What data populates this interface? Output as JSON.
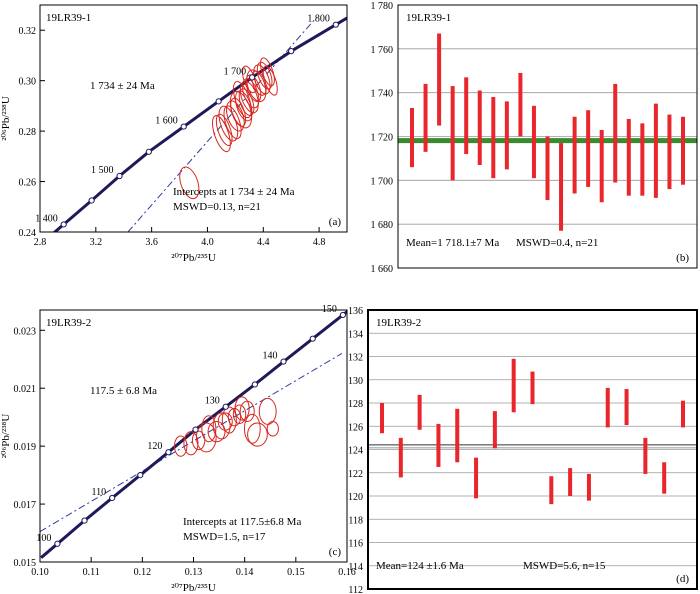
{
  "chart_data": [
    {
      "type": "scatter",
      "panel_label": "(a)",
      "sample": "19LR39-1",
      "age_text": "1 734 ± 24 Ma",
      "intercepts_text": "Intercepts at     1 734 ± 24 Ma",
      "mswd_text": "MSWD=0.13, n=21",
      "xlabel": "²⁰⁷Pb/²³⁵U",
      "ylabel": "²⁰⁶Pb/²³⁸U",
      "xlim": [
        2.8,
        5.0
      ],
      "ylim": [
        0.24,
        0.33
      ],
      "x_ticks": [
        "2.8",
        "3.2",
        "3.6",
        "4.0",
        "4.4",
        "4.8"
      ],
      "y_ticks": [
        "0.24",
        "0.26",
        "0.28",
        "0.30",
        "0.32"
      ],
      "concordia_points": [
        {
          "label": "1 400",
          "x": 2.97,
          "y": 0.243
        },
        {
          "label": "",
          "x": 3.17,
          "y": 0.2525
        },
        {
          "label": "1 500",
          "x": 3.37,
          "y": 0.2622
        },
        {
          "label": "",
          "x": 3.58,
          "y": 0.2718
        },
        {
          "label": "1 600",
          "x": 3.83,
          "y": 0.2818
        },
        {
          "label": "",
          "x": 4.08,
          "y": 0.2918
        },
        {
          "label": "1 700",
          "x": 4.32,
          "y": 0.3013
        },
        {
          "label": "",
          "x": 4.6,
          "y": 0.3117
        },
        {
          "label": "1 800",
          "x": 4.92,
          "y": 0.3222
        }
      ],
      "discordia": [
        {
          "x": 3.43,
          "y": 0.24
        },
        {
          "x": 4.78,
          "y": 0.325
        }
      ],
      "ellipses": [
        {
          "x": 3.87,
          "y": 0.2595,
          "rx": 0.11,
          "ry": 0.0065
        },
        {
          "x": 4.1,
          "y": 0.279,
          "rx": 0.09,
          "ry": 0.0075
        },
        {
          "x": 4.12,
          "y": 0.2805,
          "rx": 0.08,
          "ry": 0.0065
        },
        {
          "x": 4.15,
          "y": 0.283,
          "rx": 0.1,
          "ry": 0.0072
        },
        {
          "x": 4.18,
          "y": 0.2835,
          "rx": 0.09,
          "ry": 0.0068
        },
        {
          "x": 4.2,
          "y": 0.286,
          "rx": 0.1,
          "ry": 0.0062
        },
        {
          "x": 4.22,
          "y": 0.2875,
          "rx": 0.08,
          "ry": 0.0058
        },
        {
          "x": 4.24,
          "y": 0.2885,
          "rx": 0.12,
          "ry": 0.0075
        },
        {
          "x": 4.26,
          "y": 0.29,
          "rx": 0.09,
          "ry": 0.0062
        },
        {
          "x": 4.28,
          "y": 0.2915,
          "rx": 0.08,
          "ry": 0.0055
        },
        {
          "x": 4.3,
          "y": 0.2935,
          "rx": 0.1,
          "ry": 0.0065
        },
        {
          "x": 4.31,
          "y": 0.295,
          "rx": 0.09,
          "ry": 0.006
        },
        {
          "x": 4.33,
          "y": 0.297,
          "rx": 0.08,
          "ry": 0.0055
        },
        {
          "x": 4.35,
          "y": 0.298,
          "rx": 0.11,
          "ry": 0.0065
        },
        {
          "x": 4.37,
          "y": 0.299,
          "rx": 0.08,
          "ry": 0.005
        },
        {
          "x": 4.39,
          "y": 0.3005,
          "rx": 0.09,
          "ry": 0.006
        },
        {
          "x": 4.41,
          "y": 0.302,
          "rx": 0.08,
          "ry": 0.0055
        },
        {
          "x": 4.43,
          "y": 0.3035,
          "rx": 0.07,
          "ry": 0.0058
        },
        {
          "x": 4.3,
          "y": 0.3005,
          "rx": 0.07,
          "ry": 0.0055
        },
        {
          "x": 4.45,
          "y": 0.3,
          "rx": 0.07,
          "ry": 0.006
        },
        {
          "x": 4.25,
          "y": 0.2925,
          "rx": 0.09,
          "ry": 0.0075
        }
      ]
    },
    {
      "type": "bar",
      "panel_label": "(b)",
      "sample": "19LR39-1",
      "mean_text": "Mean=1 718.1±7 Ma",
      "mswd_text": "MSWD=0.4, n=21",
      "ylim": [
        1660,
        1780
      ],
      "y_ticks": [
        "1 660",
        "1 680",
        "1 700",
        "1 720",
        "1 740",
        "1 760",
        "1 780"
      ],
      "mean": 1718.1,
      "bars": [
        [
          1706,
          1733
        ],
        [
          1713,
          1744
        ],
        [
          1725,
          1767
        ],
        [
          1700,
          1743
        ],
        [
          1712,
          1747
        ],
        [
          1707,
          1741
        ],
        [
          1701,
          1738
        ],
        [
          1705,
          1736
        ],
        [
          1720,
          1749
        ],
        [
          1701,
          1734
        ],
        [
          1691,
          1720
        ],
        [
          1677,
          1717
        ],
        [
          1694,
          1729
        ],
        [
          1697,
          1732
        ],
        [
          1690,
          1723
        ],
        [
          1699,
          1744
        ],
        [
          1693,
          1728
        ],
        [
          1693,
          1726
        ],
        [
          1692,
          1735
        ],
        [
          1696,
          1730
        ],
        [
          1698,
          1729
        ]
      ],
      "colors": {
        "bar": "#e8262b",
        "mean": "#3a8a2e"
      }
    },
    {
      "type": "scatter",
      "panel_label": "(c)",
      "sample": "19LR39-2",
      "age_text": "117.5 ± 6.8 Ma",
      "intercepts_text": "Intercepts at       117.5±6.8 Ma",
      "mswd_text": "MSWD=1.5, n=17",
      "xlabel": "²⁰⁷Pb/²³⁵U",
      "ylabel": "²⁰⁶Pb/²³⁸U",
      "xlim": [
        0.1,
        0.16
      ],
      "ylim": [
        0.015,
        0.0237
      ],
      "x_ticks": [
        "0.10",
        "0.11",
        "0.12",
        "0.13",
        "0.14",
        "0.15",
        "0.16"
      ],
      "y_ticks": [
        "0.015",
        "0.017",
        "0.019",
        "0.021",
        "0.023"
      ],
      "concordia_points": [
        {
          "label": "100",
          "x": 0.1034,
          "y": 0.01563
        },
        {
          "label": "",
          "x": 0.1087,
          "y": 0.01643
        },
        {
          "label": "110",
          "x": 0.1141,
          "y": 0.01721
        },
        {
          "label": "",
          "x": 0.1196,
          "y": 0.018
        },
        {
          "label": "120",
          "x": 0.1251,
          "y": 0.01879
        },
        {
          "label": "",
          "x": 0.1304,
          "y": 0.01957
        },
        {
          "label": "130",
          "x": 0.1363,
          "y": 0.02036
        },
        {
          "label": "",
          "x": 0.142,
          "y": 0.02113
        },
        {
          "label": "140",
          "x": 0.1476,
          "y": 0.02192
        },
        {
          "label": "",
          "x": 0.1533,
          "y": 0.02271
        },
        {
          "label": "150",
          "x": 0.1592,
          "y": 0.02353
        }
      ],
      "discordia": [
        {
          "x": 0.1,
          "y": 0.01605
        },
        {
          "x": 0.159,
          "y": 0.0222
        }
      ],
      "ellipses": [
        {
          "x": 0.1275,
          "y": 0.019,
          "rx": 0.0022,
          "ry": 0.00035
        },
        {
          "x": 0.1295,
          "y": 0.0191,
          "rx": 0.0025,
          "ry": 0.0004
        },
        {
          "x": 0.131,
          "y": 0.0192,
          "rx": 0.0022,
          "ry": 0.00032
        },
        {
          "x": 0.1325,
          "y": 0.0193,
          "rx": 0.0035,
          "ry": 0.0005
        },
        {
          "x": 0.133,
          "y": 0.0196,
          "rx": 0.0025,
          "ry": 0.00045
        },
        {
          "x": 0.1345,
          "y": 0.0195,
          "rx": 0.003,
          "ry": 0.00035
        },
        {
          "x": 0.1355,
          "y": 0.0197,
          "rx": 0.003,
          "ry": 0.00045
        },
        {
          "x": 0.1362,
          "y": 0.01985,
          "rx": 0.0025,
          "ry": 0.0003
        },
        {
          "x": 0.137,
          "y": 0.0199,
          "rx": 0.0025,
          "ry": 0.00045
        },
        {
          "x": 0.138,
          "y": 0.02,
          "rx": 0.0022,
          "ry": 0.0003
        },
        {
          "x": 0.139,
          "y": 0.0201,
          "rx": 0.0022,
          "ry": 0.00032
        },
        {
          "x": 0.1395,
          "y": 0.0203,
          "rx": 0.0025,
          "ry": 0.0004
        },
        {
          "x": 0.1405,
          "y": 0.0202,
          "rx": 0.0025,
          "ry": 0.00035
        },
        {
          "x": 0.1415,
          "y": 0.0196,
          "rx": 0.0028,
          "ry": 0.0005
        },
        {
          "x": 0.1425,
          "y": 0.0194,
          "rx": 0.0035,
          "ry": 0.0004
        },
        {
          "x": 0.1445,
          "y": 0.0202,
          "rx": 0.003,
          "ry": 0.00045
        },
        {
          "x": 0.1455,
          "y": 0.0196,
          "rx": 0.002,
          "ry": 0.00025
        }
      ]
    },
    {
      "type": "bar",
      "panel_label": "(d)",
      "sample": "19LR39-2",
      "mean_text": "Mean=124 ±1.6 Ma",
      "mswd_text": "MSWD=5.6, n=15",
      "ylim": [
        112,
        136
      ],
      "y_ticks": [
        "112",
        "114",
        "116",
        "118",
        "120",
        "122",
        "124",
        "126",
        "128",
        "130",
        "132",
        "134",
        "136"
      ],
      "mean": 124.4,
      "bars": [
        [
          125.4,
          128.0
        ],
        [
          121.6,
          125.0
        ],
        [
          125.7,
          128.7
        ],
        [
          122.5,
          126.2
        ],
        [
          122.9,
          127.5
        ],
        [
          119.8,
          123.3
        ],
        [
          124.1,
          127.3
        ],
        [
          127.2,
          131.8
        ],
        [
          127.9,
          130.7
        ],
        [
          119.3,
          121.7
        ],
        [
          120.0,
          122.4
        ],
        [
          119.6,
          121.9
        ],
        [
          125.9,
          129.3
        ],
        [
          126.1,
          129.2
        ],
        [
          121.9,
          125.0
        ],
        [
          120.2,
          122.9
        ],
        [
          125.9,
          128.2
        ]
      ],
      "colors": {
        "bar": "#e8262b",
        "mean": "#333333"
      }
    }
  ]
}
